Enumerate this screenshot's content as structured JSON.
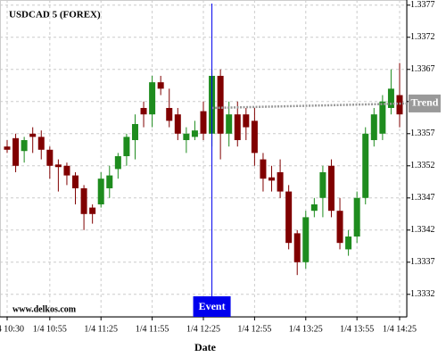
{
  "chart_data": {
    "type": "candlestick",
    "title": "USDCAD 5 (FOREX)",
    "watermark": "www.delkos.com",
    "x_label": "Date",
    "categories": [
      "1/4 10:30",
      null,
      null,
      null,
      null,
      "1/4 10:55",
      null,
      null,
      null,
      null,
      null,
      "1/4 11:25",
      null,
      null,
      null,
      null,
      null,
      "1/4 11:55",
      null,
      null,
      null,
      null,
      null,
      "1/4 12:25",
      null,
      null,
      null,
      null,
      null,
      "1/4 12:55",
      null,
      null,
      null,
      null,
      null,
      "1/4 13:25",
      null,
      null,
      null,
      null,
      null,
      "1/4 13:55",
      null,
      null,
      null,
      null,
      "1/4 14:25"
    ],
    "open": [
      1.3355,
      1.33563,
      1.33543,
      1.3357,
      1.33565,
      1.33545,
      1.33522,
      1.3352,
      1.33505,
      1.33485,
      1.33455,
      1.3346,
      1.33485,
      1.33515,
      1.33535,
      1.3356,
      1.3361,
      1.336,
      1.3365,
      1.3361,
      1.336,
      1.3356,
      1.33565,
      1.33605,
      1.3357,
      1.3366,
      1.3357,
      1.336,
      1.336,
      1.3359,
      1.3353,
      1.33502,
      1.3351,
      1.3348,
      1.33415,
      1.3337,
      1.3345,
      1.3347,
      1.3352,
      1.3345,
      1.3339,
      1.3341,
      1.3347,
      1.3356,
      1.3357,
      1.3361,
      1.3363
    ],
    "high": [
      1.3356,
      1.3357,
      1.33565,
      1.3358,
      1.33575,
      1.3355,
      1.3353,
      1.33525,
      1.3351,
      1.3349,
      1.3346,
      1.3351,
      1.3352,
      1.3354,
      1.3357,
      1.336,
      1.3362,
      1.3366,
      1.3366,
      1.3364,
      1.3361,
      1.3358,
      1.3359,
      1.3362,
      1.3367,
      1.3367,
      1.3362,
      1.3362,
      1.3361,
      1.3361,
      1.3354,
      1.3352,
      1.3353,
      1.3349,
      1.3342,
      1.3345,
      1.3347,
      1.3352,
      1.3353,
      1.3347,
      1.3342,
      1.3348,
      1.3358,
      1.3361,
      1.3363,
      1.3367,
      1.3368
    ],
    "low": [
      1.3354,
      1.3351,
      1.33525,
      1.3354,
      1.3353,
      1.335,
      1.3348,
      1.3349,
      1.3346,
      1.3342,
      1.3343,
      1.33455,
      1.3347,
      1.335,
      1.3352,
      1.3353,
      1.3358,
      1.3358,
      1.3363,
      1.3358,
      1.3356,
      1.3354,
      1.3356,
      1.3356,
      1.3355,
      1.3353,
      1.3355,
      1.3355,
      1.3356,
      1.3352,
      1.3348,
      1.3348,
      1.3347,
      1.3339,
      1.3335,
      1.3336,
      1.3344,
      1.3344,
      1.3344,
      1.3339,
      1.3338,
      1.334,
      1.3346,
      1.3355,
      1.3356,
      1.336,
      1.3358
    ],
    "close": [
      1.33545,
      1.3352,
      1.3356,
      1.33565,
      1.33545,
      1.3352,
      1.33518,
      1.33505,
      1.33485,
      1.33445,
      1.33445,
      1.335,
      1.33505,
      1.33535,
      1.33565,
      1.33585,
      1.336,
      1.3365,
      1.3364,
      1.3359,
      1.3357,
      1.3357,
      1.33575,
      1.3357,
      1.3366,
      1.3357,
      1.336,
      1.3356,
      1.3358,
      1.3354,
      1.335,
      1.33497,
      1.3348,
      1.334,
      1.3337,
      1.3344,
      1.3346,
      1.3351,
      1.3345,
      1.334,
      1.3341,
      1.3347,
      1.3357,
      1.336,
      1.3362,
      1.3364,
      1.336
    ],
    "up_color": "#1e8c1e",
    "down_color": "#800000",
    "ylim": [
      1.33285,
      1.33778
    ],
    "yticks": [
      1.3332,
      1.3337,
      1.3342,
      1.3347,
      1.3352,
      1.3357,
      1.3362,
      1.3367,
      1.3372,
      1.3377
    ],
    "grid": true,
    "trend": {
      "label": "Trend",
      "x": [
        24,
        46
      ],
      "y": [
        1.3361,
        1.33617
      ],
      "color": "#999999"
    },
    "event": {
      "label": "Event",
      "x": 24,
      "color": "#0000ee"
    }
  }
}
